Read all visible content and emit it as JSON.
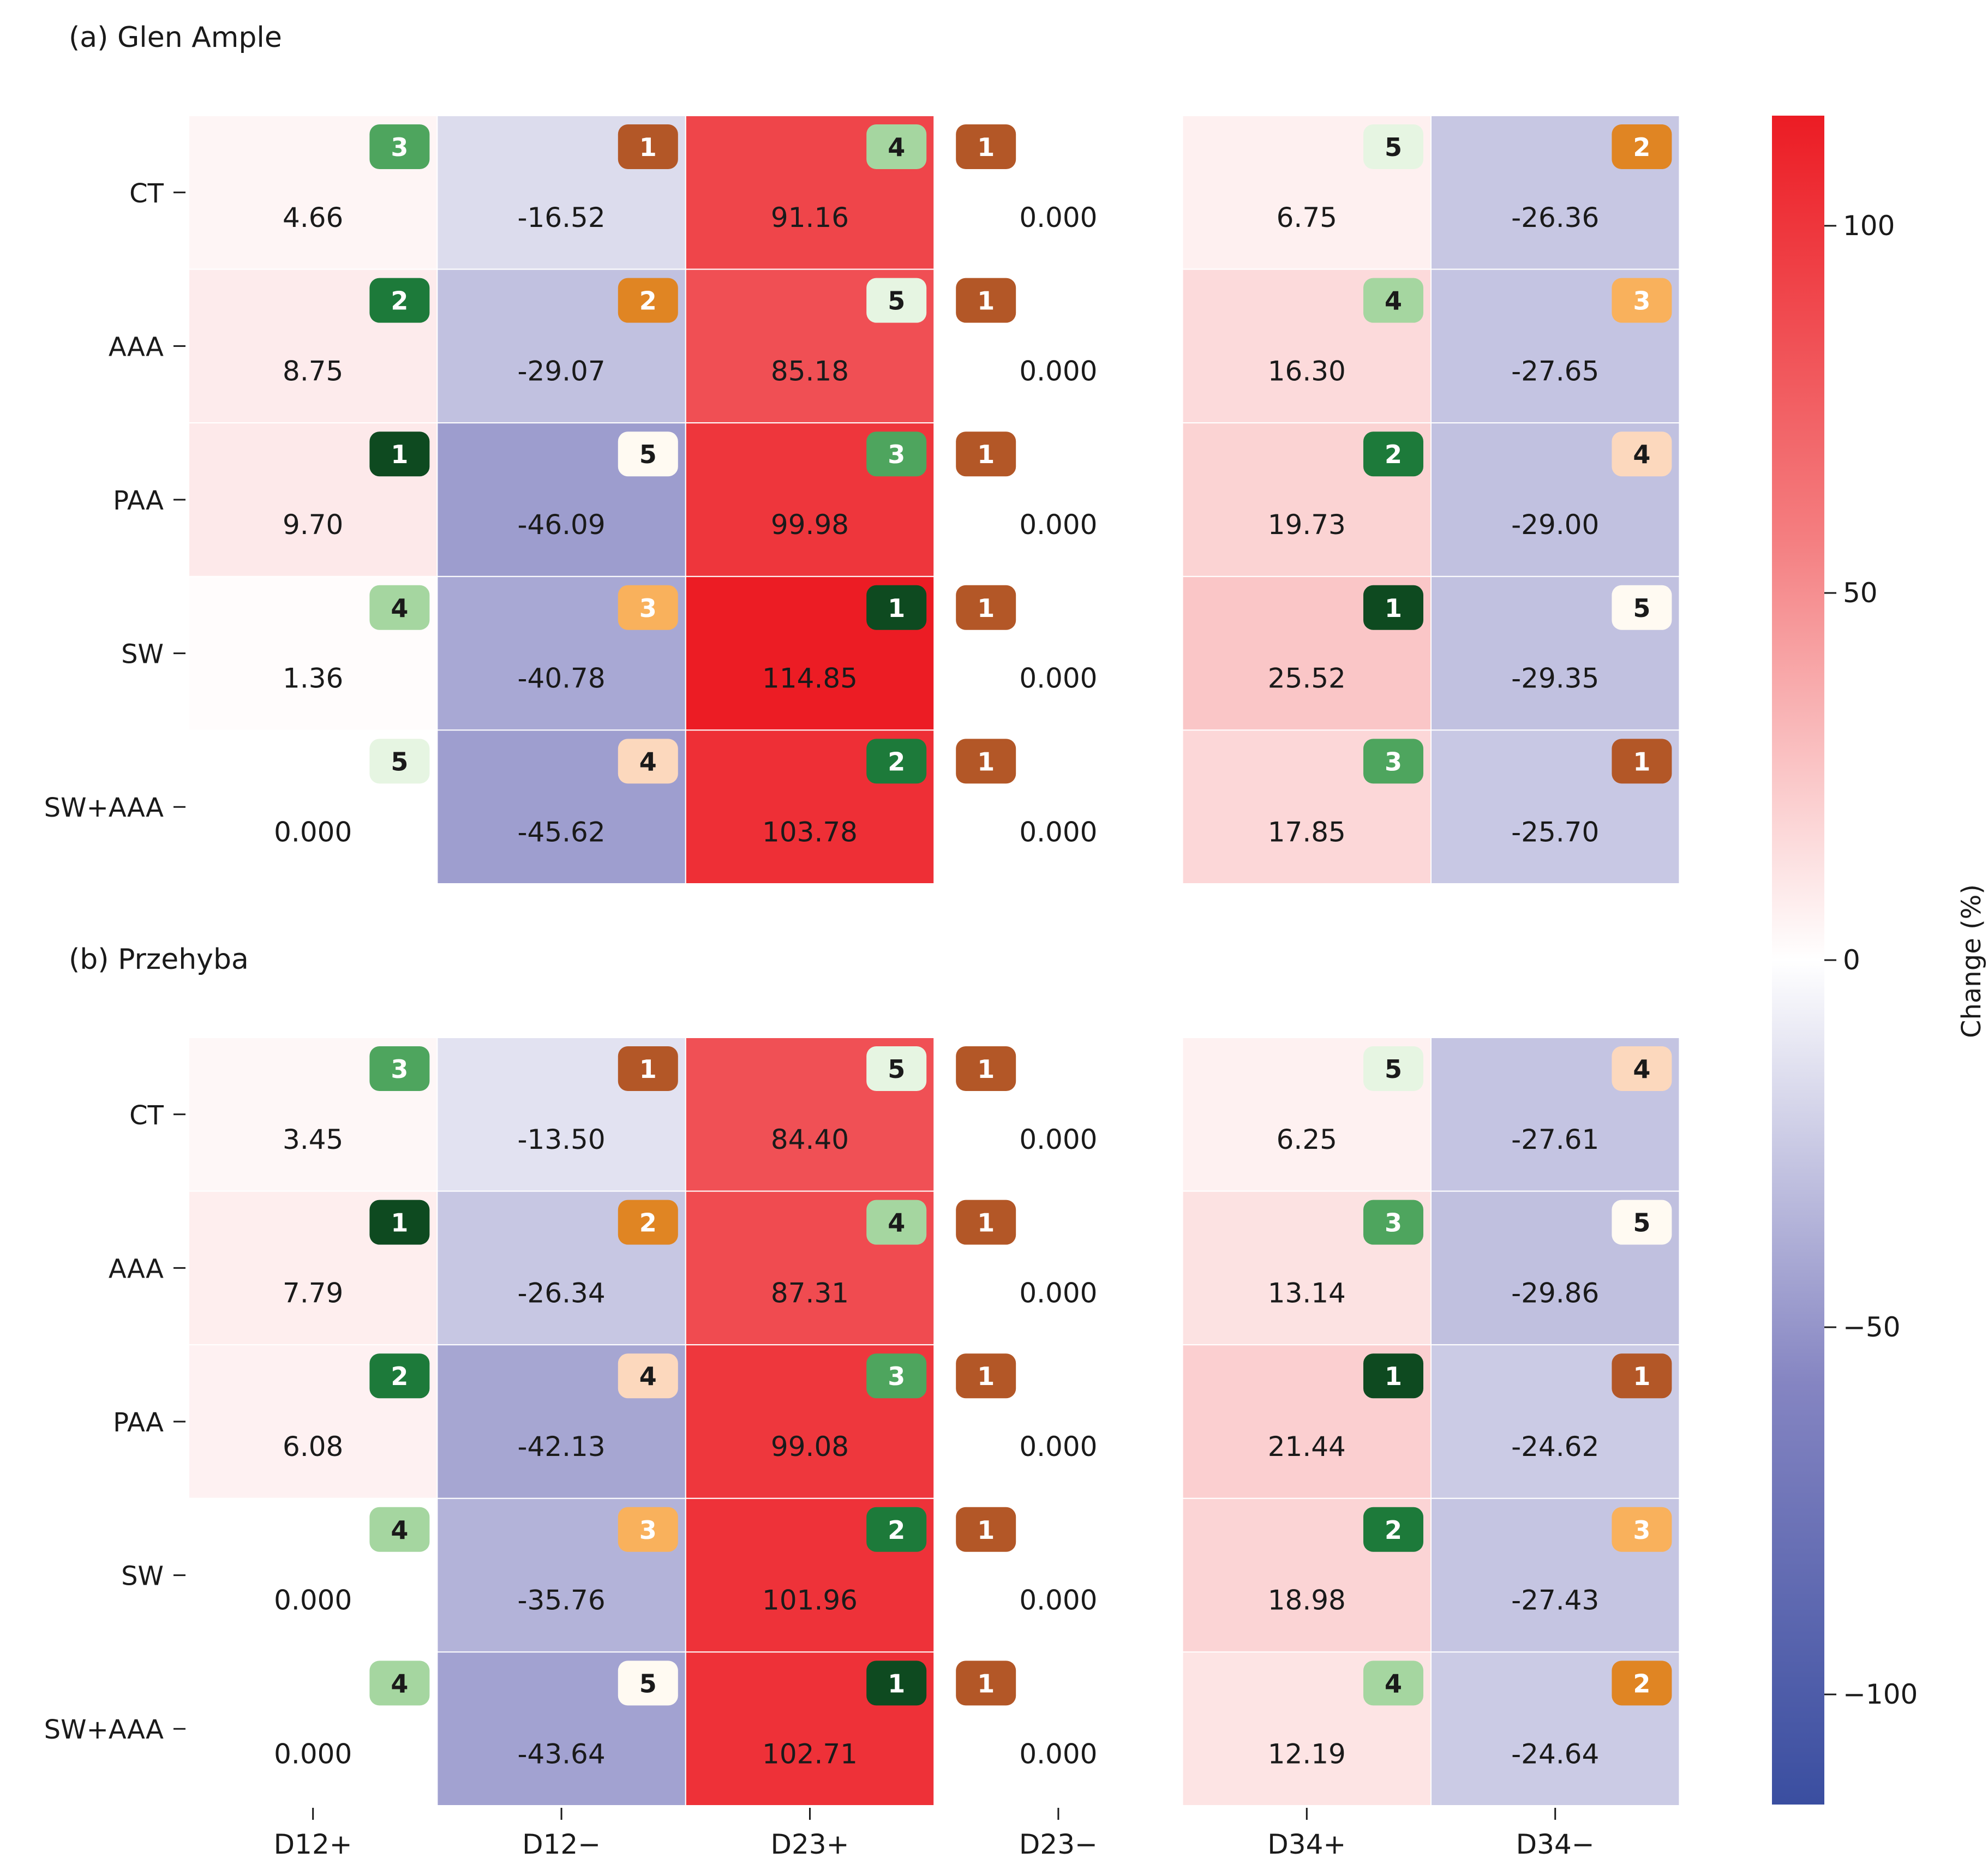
{
  "chart_data": {
    "type": "heatmap",
    "rows": [
      "CT",
      "AAA",
      "PAA",
      "SW",
      "SW+AAA"
    ],
    "columns": [
      "D12+",
      "D12−",
      "D23+",
      "D23−",
      "D34+",
      "D34−"
    ],
    "colorbar": {
      "label": "Change (%)",
      "range": [
        -115,
        115
      ],
      "ticks": [
        {
          "value": 100,
          "label": "100"
        },
        {
          "value": 50,
          "label": "50"
        },
        {
          "value": 0,
          "label": "0"
        },
        {
          "value": -50,
          "label": "−50"
        },
        {
          "value": -100,
          "label": "−100"
        }
      ],
      "colormap": "blue-white-red"
    },
    "panels": [
      {
        "title": "(a) Glen Ample",
        "values": [
          [
            4.66,
            -16.52,
            91.16,
            0.0,
            6.75,
            -26.36
          ],
          [
            8.75,
            -29.07,
            85.18,
            0.0,
            16.3,
            -27.65
          ],
          [
            9.7,
            -46.09,
            99.98,
            0.0,
            19.73,
            -29.0
          ],
          [
            1.36,
            -40.78,
            114.85,
            0.0,
            25.52,
            -29.35
          ],
          [
            0.0,
            -45.62,
            103.78,
            0.0,
            17.85,
            -25.7
          ]
        ],
        "labels": [
          [
            "4.66",
            "-16.52",
            "91.16",
            "0.000",
            "6.75",
            "-26.36"
          ],
          [
            "8.75",
            "-29.07",
            "85.18",
            "0.000",
            "16.30",
            "-27.65"
          ],
          [
            "9.70",
            "-46.09",
            "99.98",
            "0.000",
            "19.73",
            "-29.00"
          ],
          [
            "1.36",
            "-40.78",
            "114.85",
            "0.000",
            "25.52",
            "-29.35"
          ],
          [
            "0.000",
            "-45.62",
            "103.78",
            "0.000",
            "17.85",
            "-25.70"
          ]
        ],
        "ranks": [
          [
            3,
            1,
            4,
            1,
            5,
            2
          ],
          [
            2,
            2,
            5,
            1,
            4,
            3
          ],
          [
            1,
            5,
            3,
            1,
            2,
            4
          ],
          [
            4,
            3,
            1,
            1,
            1,
            5
          ],
          [
            5,
            4,
            2,
            1,
            3,
            1
          ]
        ]
      },
      {
        "title": "(b) Przehyba",
        "values": [
          [
            3.45,
            -13.5,
            84.4,
            0.0,
            6.25,
            -27.61
          ],
          [
            7.79,
            -26.34,
            87.31,
            0.0,
            13.14,
            -29.86
          ],
          [
            6.08,
            -42.13,
            99.08,
            0.0,
            21.44,
            -24.62
          ],
          [
            0.0,
            -35.76,
            101.96,
            0.0,
            18.98,
            -27.43
          ],
          [
            0.0,
            -43.64,
            102.71,
            0.0,
            12.19,
            -24.64
          ]
        ],
        "labels": [
          [
            "3.45",
            "-13.50",
            "84.40",
            "0.000",
            "6.25",
            "-27.61"
          ],
          [
            "7.79",
            "-26.34",
            "87.31",
            "0.000",
            "13.14",
            "-29.86"
          ],
          [
            "6.08",
            "-42.13",
            "99.08",
            "0.000",
            "21.44",
            "-24.62"
          ],
          [
            "0.000",
            "-35.76",
            "101.96",
            "0.000",
            "18.98",
            "-27.43"
          ],
          [
            "0.000",
            "-43.64",
            "102.71",
            "0.000",
            "12.19",
            "-24.64"
          ]
        ],
        "ranks": [
          [
            3,
            1,
            5,
            1,
            5,
            4
          ],
          [
            1,
            2,
            4,
            1,
            3,
            5
          ],
          [
            2,
            4,
            3,
            1,
            1,
            1
          ],
          [
            4,
            3,
            2,
            1,
            2,
            3
          ],
          [
            4,
            5,
            1,
            1,
            4,
            2
          ]
        ]
      }
    ]
  },
  "colors": {
    "positive_columns_badges": {
      "1": "#0e4a20",
      "2": "#1d7a3a",
      "3": "#4ea55e",
      "4": "#a5d6a0",
      "5": "#e6f5e2"
    },
    "negative_columns_badges": {
      "1": "#b35727",
      "2": "#e08523",
      "3": "#f9b15c",
      "4": "#fcd8bd",
      "5": "#fffaf2"
    },
    "negative_extreme": "#3a4ea0",
    "neutral": "#ffffff",
    "positive_extreme": "#ec1c24"
  }
}
